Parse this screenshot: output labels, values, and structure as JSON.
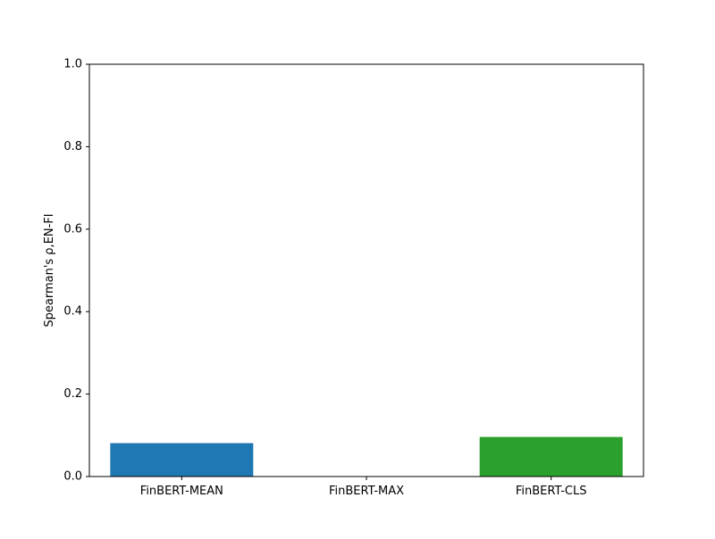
{
  "chart_data": {
    "type": "bar",
    "title": "",
    "xlabel": "",
    "ylabel": "Spearman's ρ,EN-FI",
    "categories": [
      "FinBERT-MEAN",
      "FinBERT-MAX",
      "FinBERT-CLS"
    ],
    "values": [
      0.081,
      0.0,
      0.096
    ],
    "colors": [
      "#1f77b4",
      "#ff7f0e",
      "#2ca02c"
    ],
    "ylim": [
      0.0,
      1.0
    ],
    "yticks": [
      "0.0",
      "0.2",
      "0.4",
      "0.6",
      "0.8",
      "1.0"
    ],
    "grid": false,
    "legend": "none"
  }
}
